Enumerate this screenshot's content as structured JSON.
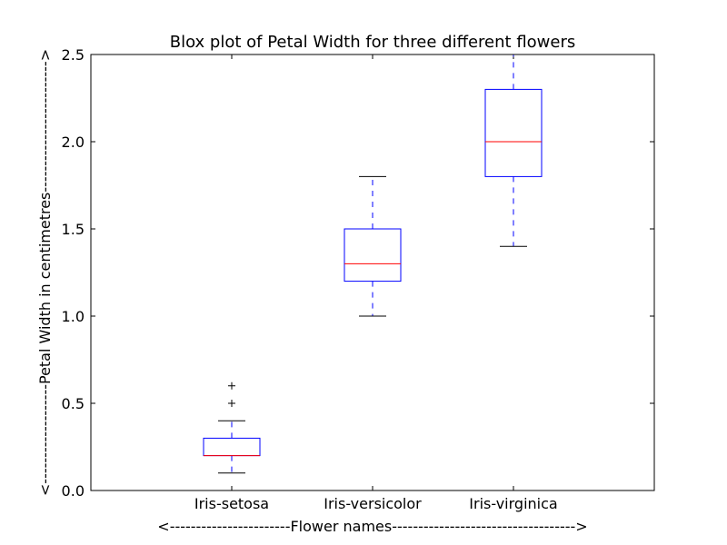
{
  "chart_data": {
    "type": "box",
    "title": "Blox plot of Petal Width for three different flowers",
    "xlabel": "<-----------------------Flower names----------------------------------->",
    "ylabel": "<-------------------Petal Width in centimetres------------------------->",
    "categories": [
      "Iris-setosa",
      "Iris-versicolor",
      "Iris-virginica"
    ],
    "ylim": [
      0.0,
      2.5
    ],
    "yticks": [
      0.0,
      0.5,
      1.0,
      1.5,
      2.0,
      2.5
    ],
    "ytick_labels": [
      "0.0",
      "0.5",
      "1.0",
      "1.5",
      "2.0",
      "2.5"
    ],
    "grid": false,
    "boxes": [
      {
        "category": "Iris-setosa",
        "whisker_low": 0.1,
        "q1": 0.2,
        "median": 0.2,
        "q3": 0.3,
        "whisker_high": 0.4,
        "outliers": [
          0.5,
          0.6
        ]
      },
      {
        "category": "Iris-versicolor",
        "whisker_low": 1.0,
        "q1": 1.2,
        "median": 1.3,
        "q3": 1.5,
        "whisker_high": 1.8,
        "outliers": []
      },
      {
        "category": "Iris-virginica",
        "whisker_low": 1.4,
        "q1": 1.8,
        "median": 2.0,
        "q3": 2.3,
        "whisker_high": 2.5,
        "outliers": []
      }
    ],
    "colors": {
      "box": "#0000ff",
      "whisker": "#0000ff",
      "median": "#ff0000",
      "cap": "#000000",
      "outlier": "#000000",
      "axes": "#000000"
    }
  }
}
